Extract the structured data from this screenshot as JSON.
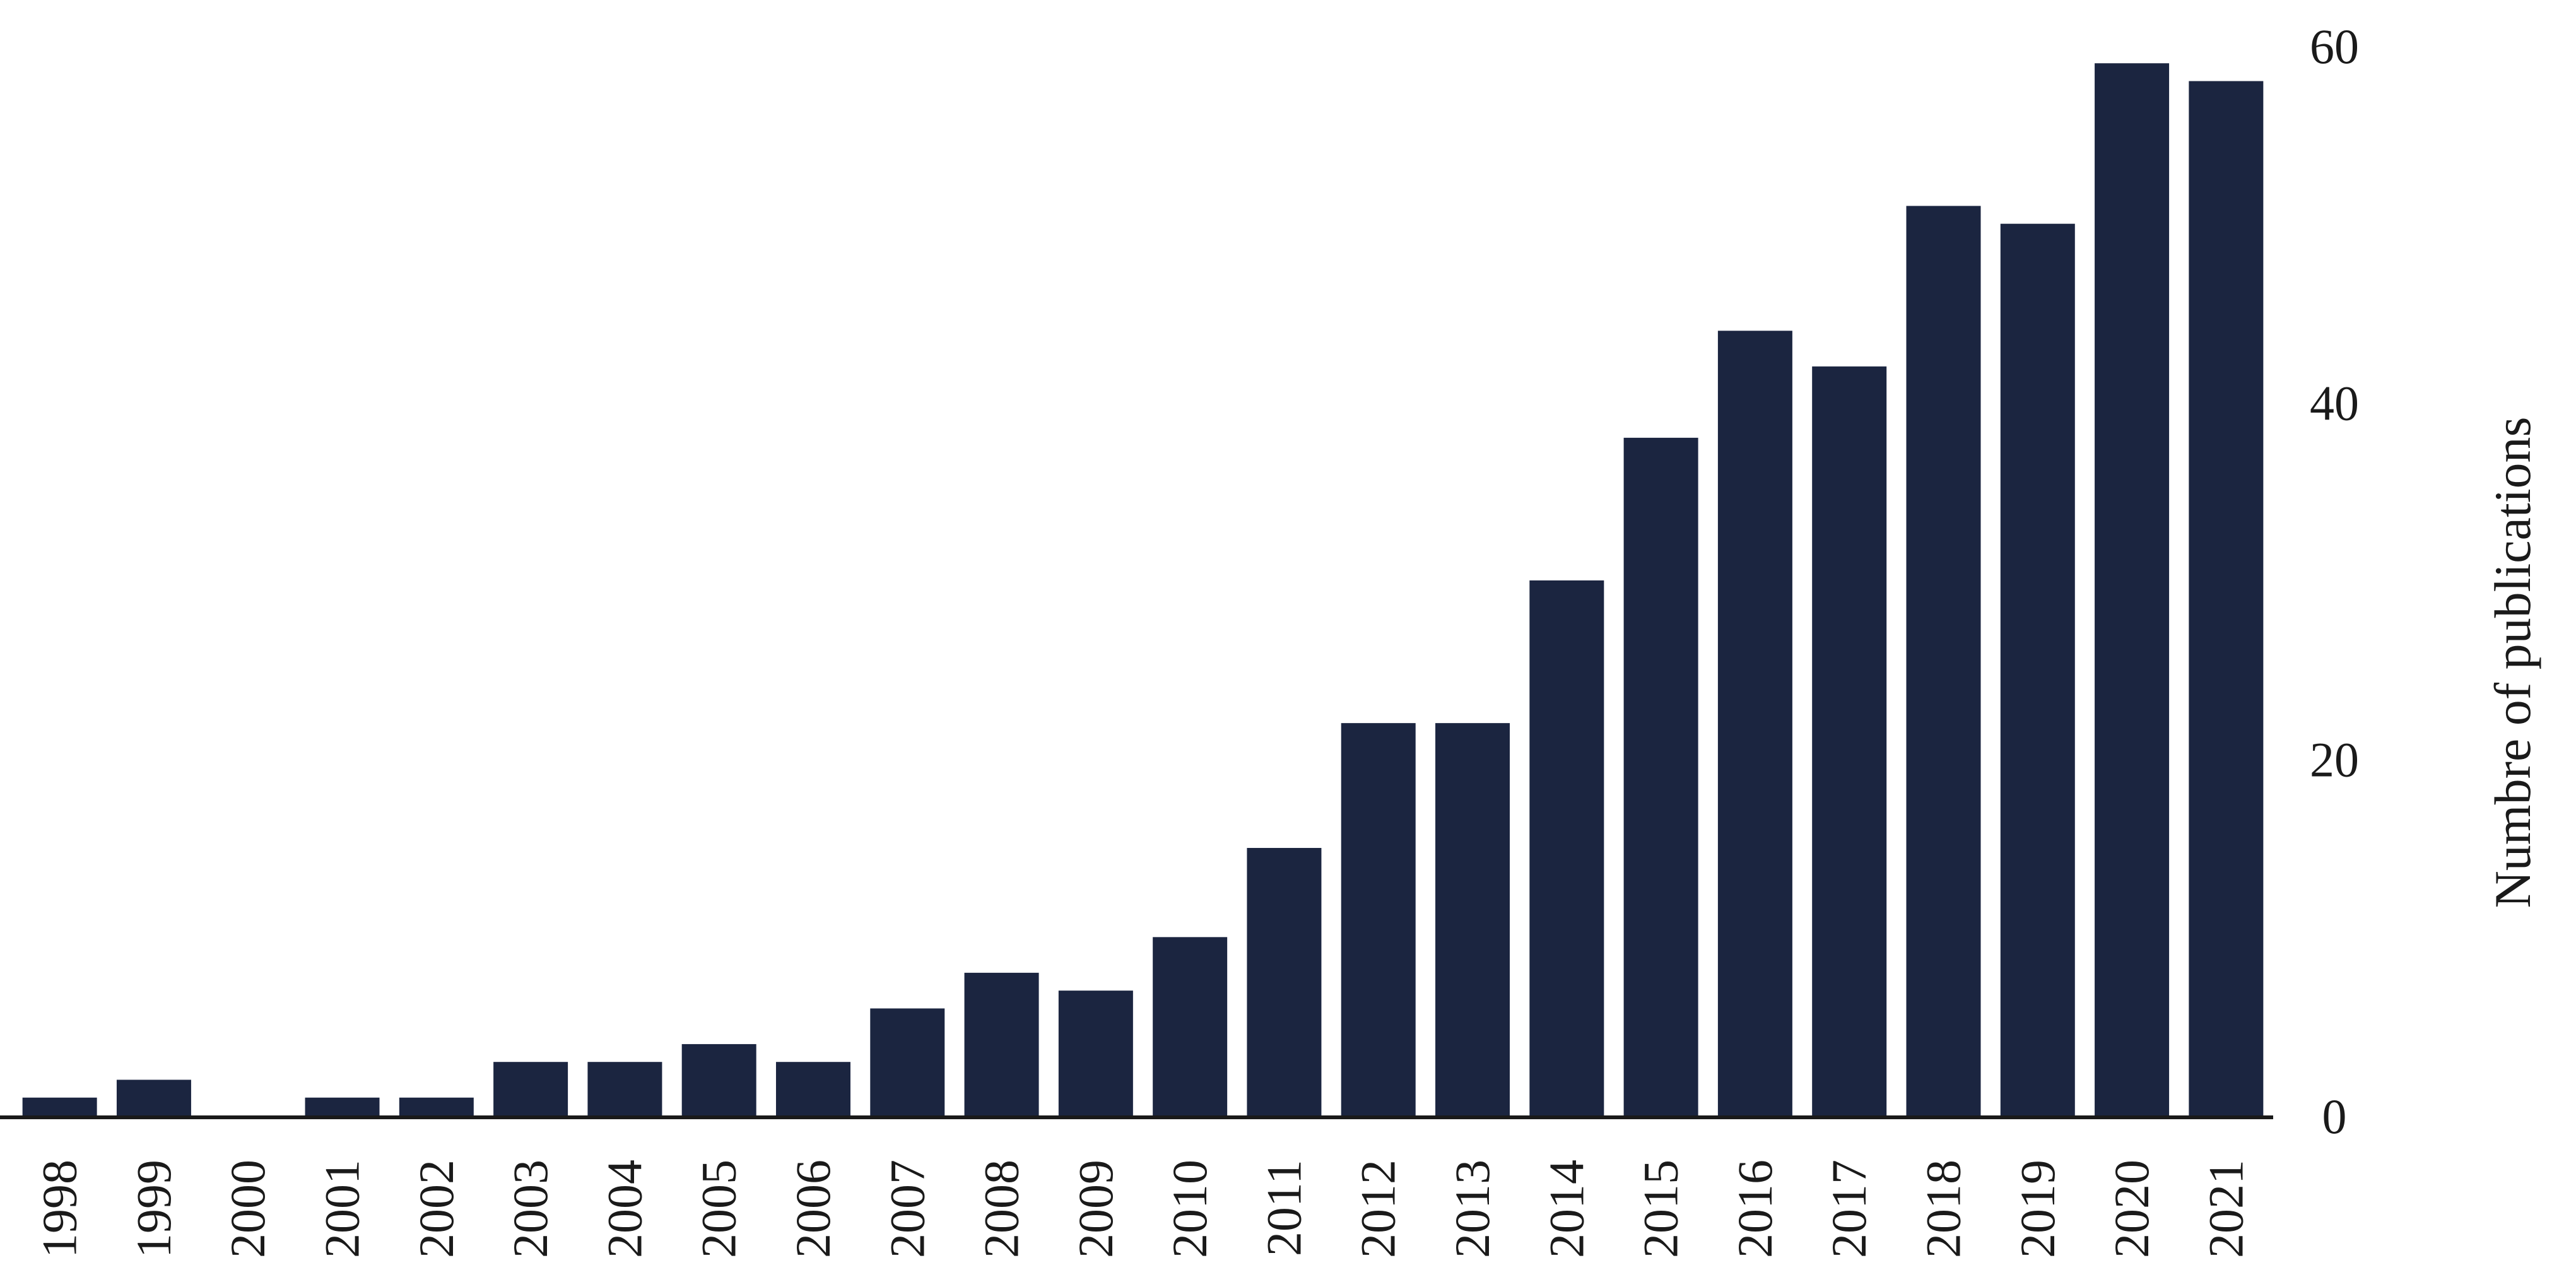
{
  "chart_data": {
    "type": "bar",
    "title": "",
    "xlabel": "",
    "ylabel": "Numbre of publications",
    "ylim": [
      0,
      60
    ],
    "yticks": [
      0,
      20,
      40,
      60
    ],
    "y_axis_position": "right",
    "grid": false,
    "legend": "none",
    "bar_color": "#1b2540",
    "categories": [
      "1998",
      "1999",
      "2000",
      "2001",
      "2002",
      "2003",
      "2004",
      "2005",
      "2006",
      "2007",
      "2008",
      "2009",
      "2010",
      "2011",
      "2012",
      "2013",
      "2014",
      "2015",
      "2016",
      "2017",
      "2018",
      "2019",
      "2020",
      "2021"
    ],
    "values": [
      1,
      2,
      0,
      1,
      1,
      3,
      3,
      4,
      3,
      6,
      8,
      7,
      10,
      15,
      22,
      22,
      30,
      38,
      44,
      42,
      51,
      50,
      59,
      58
    ]
  }
}
